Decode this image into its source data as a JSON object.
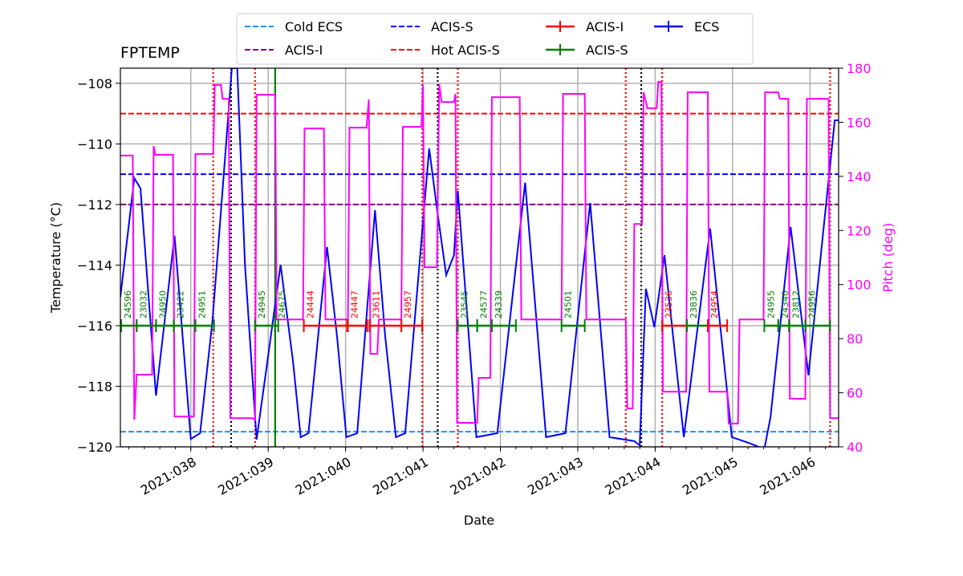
{
  "chart_data": {
    "type": "line",
    "title": "FPTEMP",
    "xlabel": "Date",
    "ylabel": "Temperature ($^\\circ$C)",
    "ylabel_display": "Temperature (°C)",
    "y2label": "Pitch (deg)",
    "xlim": [
      37.09,
      46.37
    ],
    "ylim": [
      -120,
      -107.5
    ],
    "y2lim": [
      40,
      180
    ],
    "grid": true,
    "legend_placement": "top-center",
    "x_ticks": [
      38,
      39,
      40,
      41,
      42,
      43,
      44,
      45,
      46
    ],
    "x_tick_labels": [
      "2021:038",
      "2021:039",
      "2021:040",
      "2021:041",
      "2021:042",
      "2021:043",
      "2021:044",
      "2021:045",
      "2021:046"
    ],
    "y_ticks": [
      -120,
      -118,
      -116,
      -114,
      -112,
      -110,
      -108
    ],
    "y_tick_labels": [
      "−120",
      "−118",
      "−116",
      "−114",
      "−112",
      "−110",
      "−108"
    ],
    "y2_ticks": [
      40,
      60,
      80,
      100,
      120,
      140,
      160,
      180
    ],
    "y2_tick_labels": [
      "40",
      "60",
      "80",
      "100",
      "120",
      "140",
      "160",
      "180"
    ],
    "colors": {
      "cold_ecs": "#1e90ff",
      "acis_i_limit": "#800080",
      "acis_s_limit": "#0000ff",
      "hot_acis_s": "#ff0000",
      "acis_i_obs": "#ff0000",
      "acis_s_obs": "#008000",
      "ecs": "#0000ff",
      "pitch": "#ff00ff"
    },
    "limit_lines": [
      {
        "name": "Cold ECS",
        "value": -119.5,
        "color": "#1e90ff"
      },
      {
        "name": "ACIS-I",
        "value": -112,
        "color": "#800080"
      },
      {
        "name": "ACIS-S",
        "value": -111,
        "color": "#0000ff"
      },
      {
        "name": "Hot ACIS-S",
        "value": -109,
        "color": "#ff0000"
      }
    ],
    "legend": [
      {
        "label": "Cold ECS",
        "style": "dashed",
        "color": "#1e90ff"
      },
      {
        "label": "ACIS-I",
        "style": "dashed",
        "color": "#800080"
      },
      {
        "label": "ACIS-S",
        "style": "dashed",
        "color": "#0000ff"
      },
      {
        "label": "Hot ACIS-S",
        "style": "dashed",
        "color": "#ff0000"
      },
      {
        "label": "ACIS-I",
        "style": "errorbar",
        "color": "#ff0000"
      },
      {
        "label": "ACIS-S",
        "style": "errorbar",
        "color": "#008000"
      },
      {
        "label": "ECS",
        "style": "errorbar",
        "color": "#0000ff"
      }
    ],
    "vertical_lines": [
      {
        "x": 38.29,
        "style": "dotted",
        "color": "#ff0000"
      },
      {
        "x": 38.83,
        "style": "dotted",
        "color": "#ff0000"
      },
      {
        "x": 40.99,
        "style": "dotted",
        "color": "#ff0000"
      },
      {
        "x": 41.45,
        "style": "dotted",
        "color": "#ff0000"
      },
      {
        "x": 43.62,
        "style": "dotted",
        "color": "#ff0000"
      },
      {
        "x": 44.09,
        "style": "dotted",
        "color": "#ff0000"
      },
      {
        "x": 46.26,
        "style": "dotted",
        "color": "#ff0000"
      },
      {
        "x": 38.52,
        "style": "dotted",
        "color": "#000000"
      },
      {
        "x": 41.19,
        "style": "dotted",
        "color": "#000000"
      },
      {
        "x": 43.82,
        "style": "dotted",
        "color": "#000000"
      },
      {
        "x": 39.09,
        "style": "solid",
        "color": "#008000"
      }
    ],
    "obsids": [
      {
        "id": "24596",
        "start": 37.1,
        "end": 37.3,
        "instrument": "ACIS-S"
      },
      {
        "id": "23032",
        "start": 37.3,
        "end": 37.55,
        "instrument": "ACIS-S"
      },
      {
        "id": "24950",
        "start": 37.55,
        "end": 37.78,
        "instrument": "ACIS-S"
      },
      {
        "id": "23422",
        "start": 37.78,
        "end": 38.06,
        "instrument": "ACIS-S"
      },
      {
        "id": "24951",
        "start": 38.06,
        "end": 38.3,
        "instrument": "ACIS-S"
      },
      {
        "id": "24945",
        "start": 38.83,
        "end": 39.09,
        "instrument": "ACIS-S"
      },
      {
        "id": "24675",
        "start": 39.09,
        "end": 39.13,
        "instrument": "ACIS-S"
      },
      {
        "id": "24444",
        "start": 39.46,
        "end": 40.02,
        "instrument": "ACIS-I"
      },
      {
        "id": "24447",
        "start": 40.03,
        "end": 40.28,
        "instrument": "ACIS-I"
      },
      {
        "id": "23611",
        "start": 40.31,
        "end": 40.72,
        "instrument": "ACIS-I"
      },
      {
        "id": "24957",
        "start": 40.72,
        "end": 40.99,
        "instrument": "ACIS-I"
      },
      {
        "id": "23545",
        "start": 41.45,
        "end": 41.7,
        "instrument": "ACIS-S"
      },
      {
        "id": "24577",
        "start": 41.7,
        "end": 41.89,
        "instrument": "ACIS-S"
      },
      {
        "id": "24339",
        "start": 41.89,
        "end": 42.2,
        "instrument": "ACIS-S"
      },
      {
        "id": "24501",
        "start": 42.79,
        "end": 43.09,
        "instrument": "ACIS-S"
      },
      {
        "id": "23536",
        "start": 44.09,
        "end": 44.41,
        "instrument": "ACIS-I"
      },
      {
        "id": "23836",
        "start": 44.41,
        "end": 44.68,
        "instrument": "ACIS-S"
      },
      {
        "id": "24954",
        "start": 44.68,
        "end": 44.93,
        "instrument": "ACIS-I"
      },
      {
        "id": "24955",
        "start": 45.41,
        "end": 45.59,
        "instrument": "ACIS-S"
      },
      {
        "id": "24340",
        "start": 45.59,
        "end": 45.73,
        "instrument": "ACIS-S"
      },
      {
        "id": "23812",
        "start": 45.73,
        "end": 45.94,
        "instrument": "ACIS-S"
      },
      {
        "id": "24956",
        "start": 45.94,
        "end": 46.26,
        "instrument": "ACIS-S"
      }
    ],
    "obsid_level": -116,
    "series": [
      {
        "name": "ECS",
        "axis": "left",
        "color": "#0000ff",
        "points": [
          [
            37.09,
            -115.05
          ],
          [
            37.27,
            -111.13
          ],
          [
            37.35,
            -111.47
          ],
          [
            37.55,
            -118.31
          ],
          [
            37.79,
            -113.03
          ],
          [
            38.0,
            -119.74
          ],
          [
            38.12,
            -119.55
          ],
          [
            38.28,
            -115.84
          ],
          [
            38.44,
            -110.54
          ],
          [
            38.53,
            -107.5
          ],
          [
            38.6,
            -107.5
          ],
          [
            38.7,
            -113.99
          ],
          [
            38.85,
            -119.76
          ],
          [
            38.99,
            -117.17
          ],
          [
            39.16,
            -113.99
          ],
          [
            39.32,
            -117.17
          ],
          [
            39.42,
            -119.68
          ],
          [
            39.52,
            -119.55
          ],
          [
            39.76,
            -113.4
          ],
          [
            39.89,
            -116.37
          ],
          [
            40.01,
            -119.68
          ],
          [
            40.15,
            -119.55
          ],
          [
            40.38,
            -112.19
          ],
          [
            40.51,
            -116.31
          ],
          [
            40.65,
            -119.68
          ],
          [
            40.77,
            -119.55
          ],
          [
            41.08,
            -110.15
          ],
          [
            41.18,
            -112.13
          ],
          [
            41.3,
            -114.33
          ],
          [
            41.4,
            -113.67
          ],
          [
            41.45,
            -111.55
          ],
          [
            41.69,
            -119.68
          ],
          [
            41.96,
            -119.55
          ],
          [
            42.32,
            -111.28
          ],
          [
            42.59,
            -119.68
          ],
          [
            42.84,
            -119.55
          ],
          [
            43.16,
            -111.95
          ],
          [
            43.41,
            -119.68
          ],
          [
            43.73,
            -119.81
          ],
          [
            43.8,
            -119.95
          ],
          [
            43.88,
            -114.78
          ],
          [
            43.99,
            -116.05
          ],
          [
            44.12,
            -113.67
          ],
          [
            44.37,
            -119.68
          ],
          [
            44.71,
            -112.79
          ],
          [
            44.99,
            -119.68
          ],
          [
            45.23,
            -119.89
          ],
          [
            45.41,
            -120.08
          ],
          [
            45.49,
            -119.02
          ],
          [
            45.75,
            -112.74
          ],
          [
            45.98,
            -117.64
          ],
          [
            46.32,
            -109.22
          ],
          [
            46.37,
            -109.22
          ]
        ]
      },
      {
        "name": "Pitch",
        "axis": "right",
        "color": "#ff00ff",
        "points": [
          [
            37.09,
            147.7
          ],
          [
            37.25,
            147.7
          ],
          [
            37.27,
            50
          ],
          [
            37.3,
            66.7
          ],
          [
            37.5,
            66.7
          ],
          [
            37.52,
            151.2
          ],
          [
            37.54,
            148
          ],
          [
            37.77,
            148
          ],
          [
            37.79,
            51.2
          ],
          [
            38.04,
            51.2
          ],
          [
            38.06,
            148.3
          ],
          [
            38.29,
            148.3
          ],
          [
            38.31,
            173.8
          ],
          [
            38.39,
            173.8
          ],
          [
            38.41,
            168.7
          ],
          [
            38.49,
            168.7
          ],
          [
            38.51,
            50.6
          ],
          [
            38.8,
            50.6
          ],
          [
            38.83,
            50
          ],
          [
            38.85,
            170.2
          ],
          [
            39.09,
            170.2
          ],
          [
            39.11,
            87.1
          ],
          [
            39.45,
            87.1
          ],
          [
            39.47,
            157.7
          ],
          [
            39.72,
            157.7
          ],
          [
            39.74,
            87.1
          ],
          [
            40.03,
            87.1
          ],
          [
            40.05,
            158
          ],
          [
            40.27,
            158
          ],
          [
            40.3,
            168.4
          ],
          [
            40.32,
            74.4
          ],
          [
            40.41,
            74.4
          ],
          [
            40.43,
            87.1
          ],
          [
            40.72,
            87.1
          ],
          [
            40.74,
            158.3
          ],
          [
            40.98,
            158.3
          ],
          [
            41.0,
            174.1
          ],
          [
            41.02,
            106.4
          ],
          [
            41.18,
            106.4
          ],
          [
            41.21,
            174.1
          ],
          [
            41.24,
            167.5
          ],
          [
            41.4,
            167.5
          ],
          [
            41.42,
            170.5
          ],
          [
            41.44,
            48.9
          ],
          [
            41.7,
            48.9
          ],
          [
            41.72,
            65.5
          ],
          [
            41.87,
            65.5
          ],
          [
            41.89,
            169.3
          ],
          [
            42.25,
            169.3
          ],
          [
            42.27,
            87.1
          ],
          [
            42.79,
            87.1
          ],
          [
            42.81,
            170.5
          ],
          [
            43.09,
            170.5
          ],
          [
            43.11,
            87.1
          ],
          [
            43.62,
            87.1
          ],
          [
            43.64,
            54.2
          ],
          [
            43.71,
            54.2
          ],
          [
            43.73,
            122.4
          ],
          [
            43.83,
            122.4
          ],
          [
            43.85,
            171.1
          ],
          [
            43.9,
            165.2
          ],
          [
            44.02,
            165.2
          ],
          [
            44.04,
            175
          ],
          [
            44.08,
            175
          ],
          [
            44.1,
            60.4
          ],
          [
            44.4,
            60.4
          ],
          [
            44.42,
            171.1
          ],
          [
            44.68,
            171.1
          ],
          [
            44.7,
            60.4
          ],
          [
            44.93,
            60.4
          ],
          [
            44.95,
            48.6
          ],
          [
            45.07,
            48.6
          ],
          [
            45.09,
            87.1
          ],
          [
            45.4,
            87.1
          ],
          [
            45.42,
            171.1
          ],
          [
            45.59,
            171.1
          ],
          [
            45.61,
            168.7
          ],
          [
            45.72,
            168.7
          ],
          [
            45.74,
            57.8
          ],
          [
            45.94,
            57.8
          ],
          [
            45.96,
            168.7
          ],
          [
            46.24,
            168.7
          ],
          [
            46.26,
            50.6
          ],
          [
            46.37,
            50.6
          ]
        ]
      }
    ]
  }
}
